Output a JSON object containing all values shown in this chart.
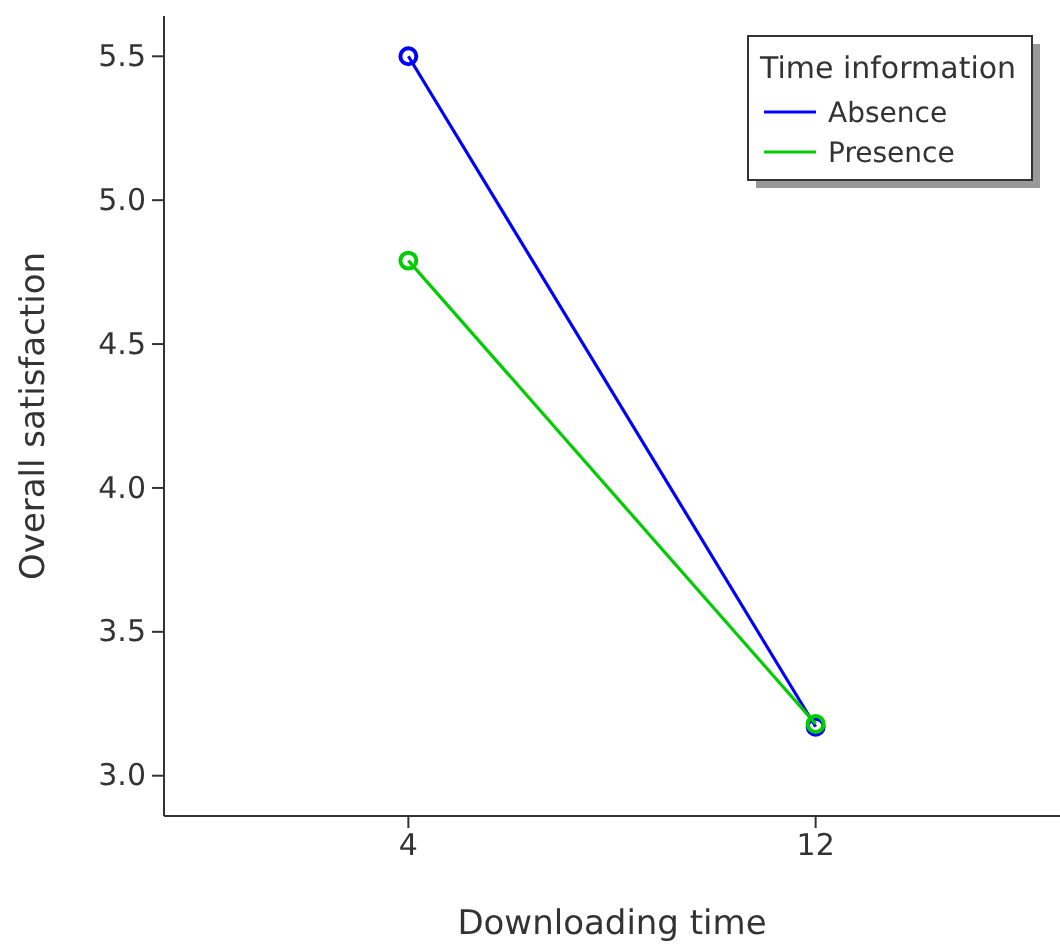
{
  "chart_data": {
    "type": "line",
    "xlabel": "Downloading time",
    "ylabel": "Overall satisfaction",
    "legend_title": "Time information",
    "categories": [
      "4",
      "12"
    ],
    "series": [
      {
        "name": "Absence",
        "color": "#0000ff",
        "values": [
          5.5,
          3.17
        ]
      },
      {
        "name": "Presence",
        "color": "#00cc00",
        "values": [
          4.79,
          3.18
        ]
      }
    ],
    "ylim": [
      2.86,
      5.64
    ],
    "yticks": [
      {
        "value": 3.0,
        "label": "3.0"
      },
      {
        "value": 3.5,
        "label": "3.5"
      },
      {
        "value": 4.0,
        "label": "4.0"
      },
      {
        "value": 4.5,
        "label": "4.5"
      },
      {
        "value": 5.0,
        "label": "5.0"
      },
      {
        "value": 5.5,
        "label": "5.5"
      }
    ],
    "marker": "circle",
    "line_style": "solid",
    "grid": false,
    "legend": "top right"
  }
}
